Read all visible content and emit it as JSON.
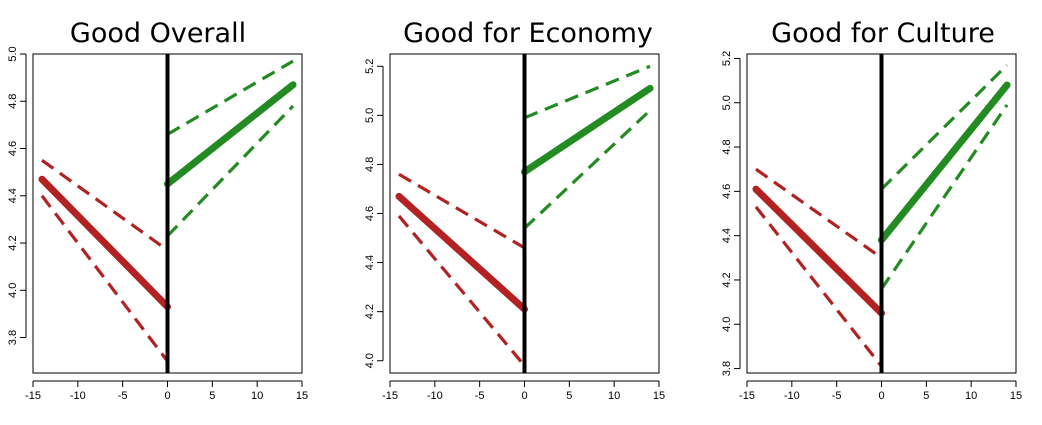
{
  "chart_data": [
    {
      "type": "line",
      "title": "Good Overall",
      "xlim": [
        -15,
        15
      ],
      "ylim": [
        3.65,
        5.0
      ],
      "xticks": [
        -15,
        -10,
        -5,
        0,
        5,
        10,
        15
      ],
      "xtick_labels": [
        "-15",
        "-10",
        "-5",
        "0",
        "5",
        "10",
        "15"
      ],
      "yticks": [
        3.8,
        4.0,
        4.2,
        4.4,
        4.6,
        4.8,
        5.0
      ],
      "ytick_labels": [
        "3.8",
        "4.0",
        "4.2",
        "4.4",
        "4.6",
        "4.8",
        "5.0"
      ],
      "cutoff": 0,
      "series": [
        {
          "color": "#b22222",
          "role": "estimate",
          "x": [
            -14,
            0
          ],
          "y": [
            4.47,
            3.93
          ]
        },
        {
          "color": "#b22222",
          "role": "upper-ci",
          "x": [
            -14,
            0
          ],
          "y": [
            4.55,
            4.17
          ]
        },
        {
          "color": "#b22222",
          "role": "lower-ci",
          "x": [
            -14,
            0
          ],
          "y": [
            4.4,
            3.7
          ]
        },
        {
          "color": "#228b22",
          "role": "estimate",
          "x": [
            0,
            14
          ],
          "y": [
            4.45,
            4.87
          ]
        },
        {
          "color": "#228b22",
          "role": "upper-ci",
          "x": [
            0,
            14
          ],
          "y": [
            4.66,
            4.97
          ]
        },
        {
          "color": "#228b22",
          "role": "lower-ci",
          "x": [
            0,
            14
          ],
          "y": [
            4.23,
            4.78
          ]
        }
      ]
    },
    {
      "type": "line",
      "title": "Good for Economy",
      "xlim": [
        -15,
        15
      ],
      "ylim": [
        3.95,
        5.25
      ],
      "xticks": [
        -15,
        -10,
        -5,
        0,
        5,
        10,
        15
      ],
      "xtick_labels": [
        "-15",
        "-10",
        "-5",
        "0",
        "5",
        "10",
        "15"
      ],
      "yticks": [
        4.0,
        4.2,
        4.4,
        4.6,
        4.8,
        5.0,
        5.2
      ],
      "ytick_labels": [
        "4.0",
        "4.2",
        "4.4",
        "4.6",
        "4.8",
        "5.0",
        "5.2"
      ],
      "cutoff": 0,
      "series": [
        {
          "color": "#b22222",
          "role": "estimate",
          "x": [
            -14,
            0
          ],
          "y": [
            4.67,
            4.21
          ]
        },
        {
          "color": "#b22222",
          "role": "upper-ci",
          "x": [
            -14,
            0
          ],
          "y": [
            4.76,
            4.46
          ]
        },
        {
          "color": "#b22222",
          "role": "lower-ci",
          "x": [
            -14,
            0
          ],
          "y": [
            4.59,
            3.98
          ]
        },
        {
          "color": "#228b22",
          "role": "estimate",
          "x": [
            0,
            14
          ],
          "y": [
            4.77,
            5.11
          ]
        },
        {
          "color": "#228b22",
          "role": "upper-ci",
          "x": [
            0,
            14
          ],
          "y": [
            4.99,
            5.2
          ]
        },
        {
          "color": "#228b22",
          "role": "lower-ci",
          "x": [
            0,
            14
          ],
          "y": [
            4.54,
            5.02
          ]
        }
      ]
    },
    {
      "type": "line",
      "title": "Good for Culture",
      "xlim": [
        -15,
        15
      ],
      "ylim": [
        3.78,
        5.22
      ],
      "xticks": [
        -15,
        -10,
        -5,
        0,
        5,
        10,
        15
      ],
      "xtick_labels": [
        "-15",
        "-10",
        "-5",
        "0",
        "5",
        "10",
        "15"
      ],
      "yticks": [
        3.8,
        4.0,
        4.2,
        4.4,
        4.6,
        4.8,
        5.0,
        5.2
      ],
      "ytick_labels": [
        "3.8",
        "4.0",
        "4.2",
        "4.4",
        "4.6",
        "4.8",
        "5.0",
        "5.2"
      ],
      "cutoff": 0,
      "series": [
        {
          "color": "#b22222",
          "role": "estimate",
          "x": [
            -14,
            0
          ],
          "y": [
            4.61,
            4.05
          ]
        },
        {
          "color": "#b22222",
          "role": "upper-ci",
          "x": [
            -14,
            0
          ],
          "y": [
            4.7,
            4.3
          ]
        },
        {
          "color": "#b22222",
          "role": "lower-ci",
          "x": [
            -14,
            0
          ],
          "y": [
            4.53,
            3.81
          ]
        },
        {
          "color": "#228b22",
          "role": "estimate",
          "x": [
            0,
            14
          ],
          "y": [
            4.38,
            5.08
          ]
        },
        {
          "color": "#228b22",
          "role": "upper-ci",
          "x": [
            0,
            14
          ],
          "y": [
            4.61,
            5.17
          ]
        },
        {
          "color": "#228b22",
          "role": "lower-ci",
          "x": [
            0,
            14
          ],
          "y": [
            4.16,
            4.99
          ]
        }
      ]
    }
  ]
}
